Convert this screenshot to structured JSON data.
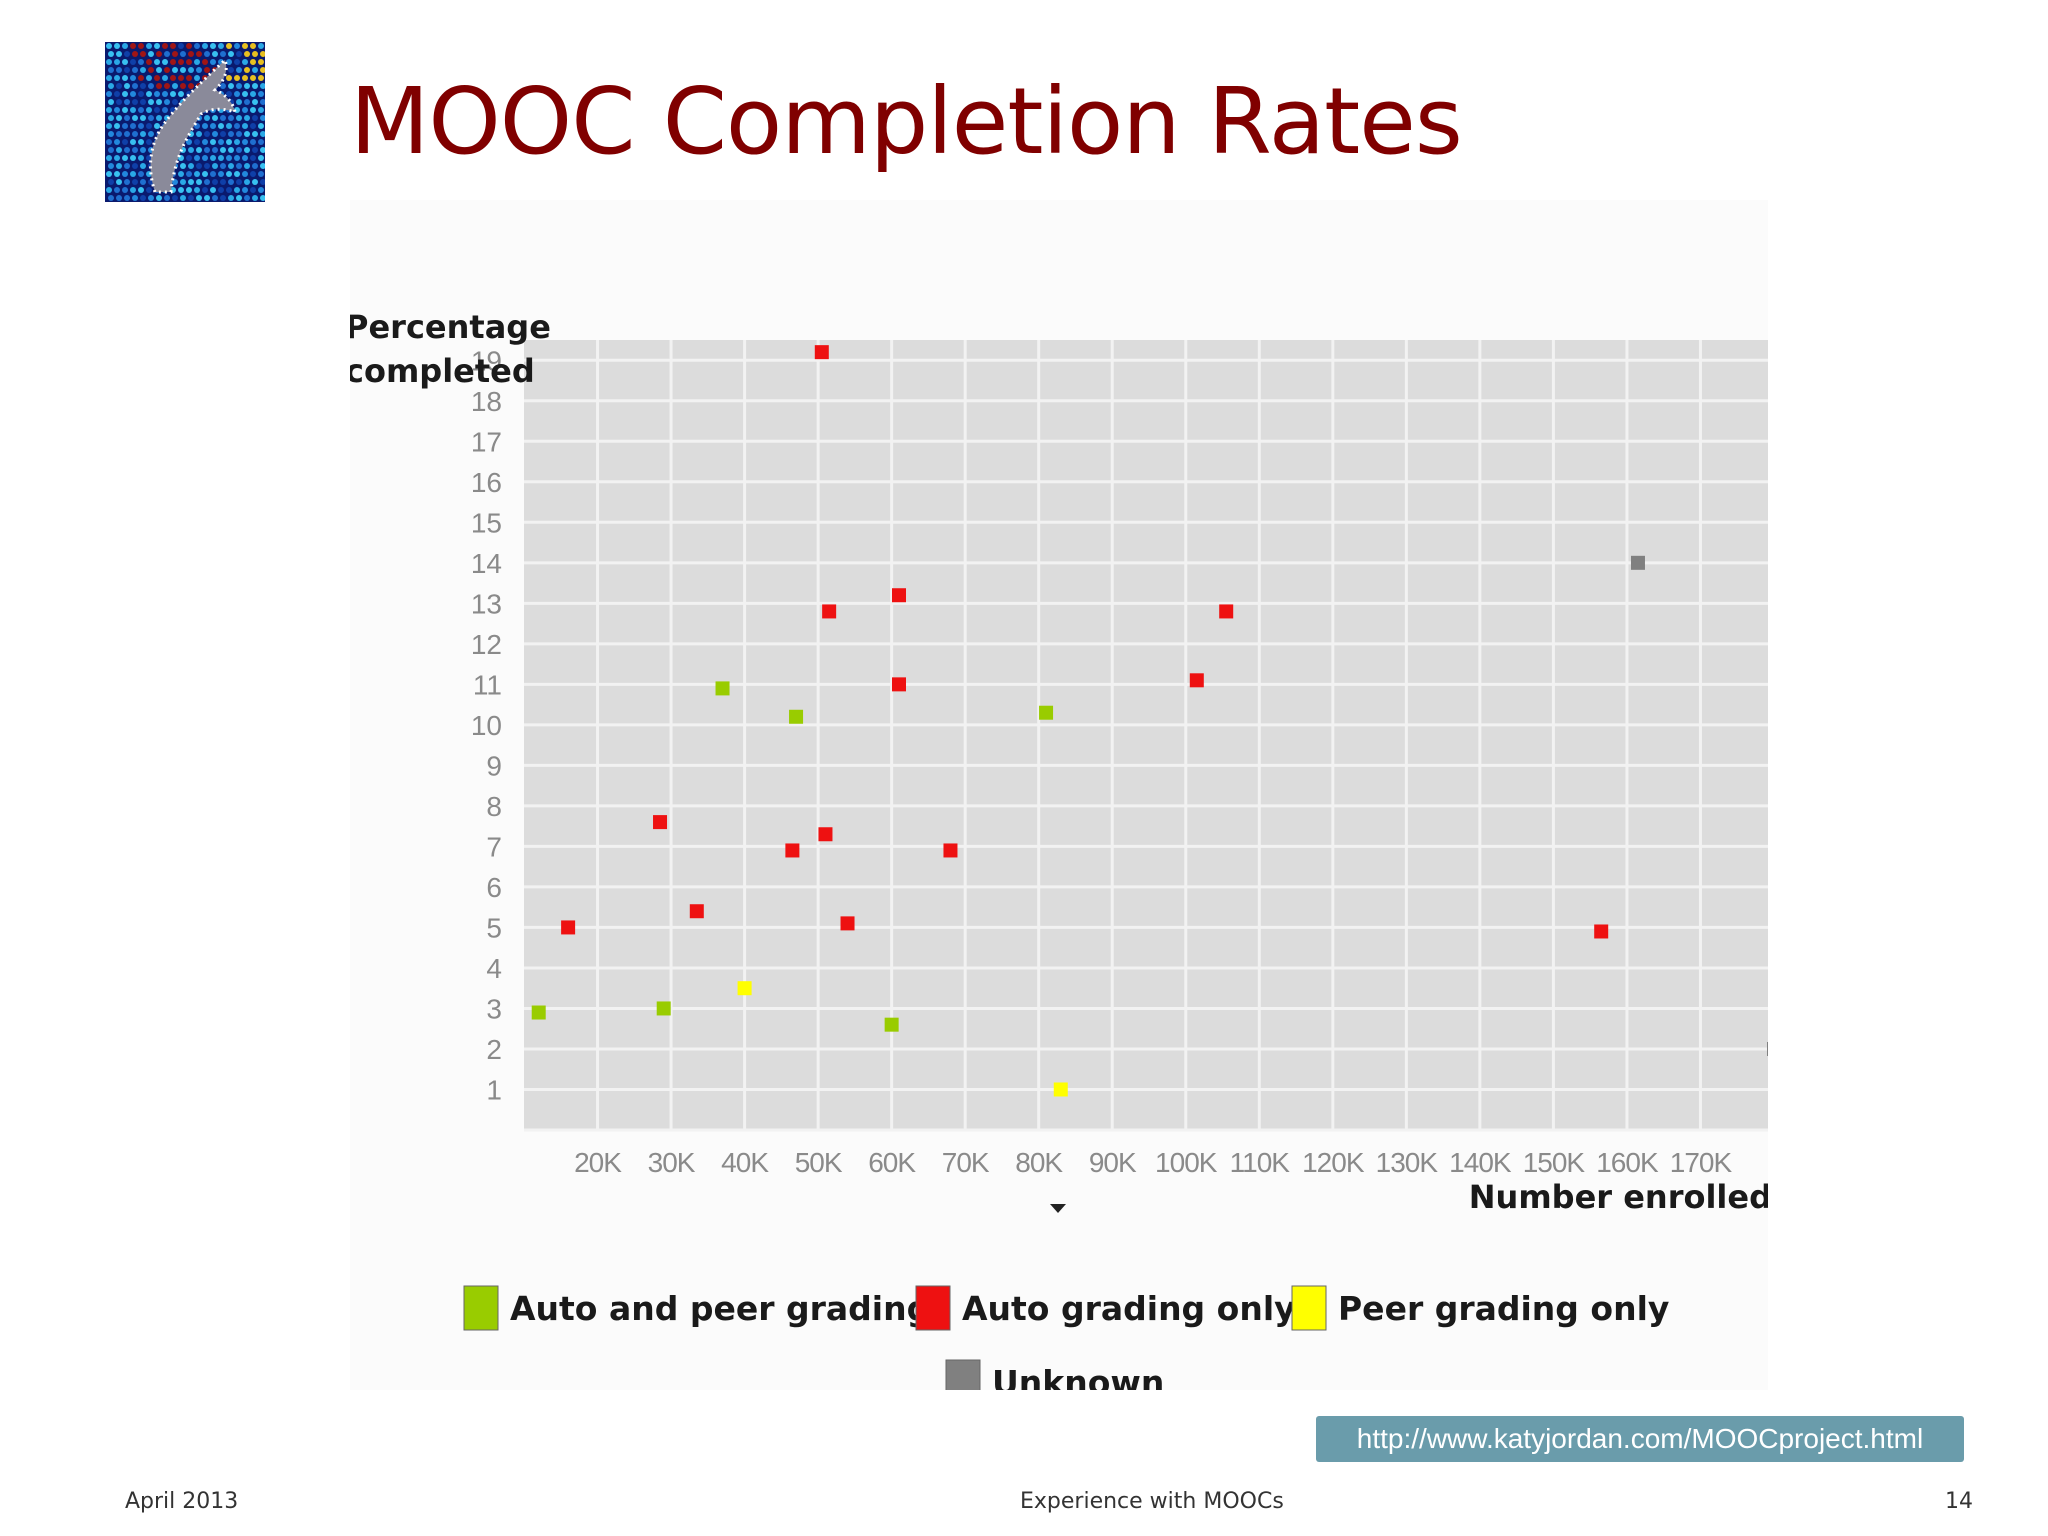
{
  "slide": {
    "title": "MOOC Completion Rates",
    "footer_left": "April 2013",
    "footer_center": "Experience with MOOCs",
    "page_number": "14",
    "source_url": "http://www.katyjordan.com/MOOCproject.html"
  },
  "colors": {
    "title": "#800000",
    "plot_background": "#dcdcdc",
    "grid": "#f2f2f2",
    "auto_and_peer": "#99cc00",
    "auto_only": "#ee1111",
    "peer_only": "#ffff00",
    "unknown": "#808080"
  },
  "chart_data": {
    "type": "scatter",
    "title": "",
    "xlabel": "Number enrolled",
    "ylabel": "Percentage completed",
    "xlim": [
      10000,
      180000
    ],
    "ylim": [
      0,
      20
    ],
    "x_tick_values": [
      20000,
      30000,
      40000,
      50000,
      60000,
      70000,
      80000,
      90000,
      100000,
      110000,
      120000,
      130000,
      140000,
      150000,
      160000,
      170000
    ],
    "x_tick_labels": [
      "20K",
      "30K",
      "40K",
      "50K",
      "60K",
      "70K",
      "80K",
      "90K",
      "100K",
      "110K",
      "120K",
      "130K",
      "140K",
      "150K",
      "160K",
      "170K"
    ],
    "y_ticks": [
      1,
      2,
      3,
      4,
      5,
      6,
      7,
      8,
      9,
      10,
      11,
      12,
      13,
      14,
      15,
      16,
      17,
      18,
      19
    ],
    "grid": true,
    "legend_position": "bottom",
    "series": [
      {
        "name": "Auto and peer grading",
        "color": "#99cc00",
        "points": [
          [
            12000,
            2.9
          ],
          [
            29000,
            3.0
          ],
          [
            37000,
            10.9
          ],
          [
            47000,
            10.2
          ],
          [
            60000,
            2.6
          ],
          [
            81000,
            10.3
          ]
        ]
      },
      {
        "name": "Auto grading only",
        "color": "#ee1111",
        "points": [
          [
            16000,
            5.0
          ],
          [
            28500,
            7.6
          ],
          [
            33500,
            5.4
          ],
          [
            46500,
            6.9
          ],
          [
            51000,
            7.3
          ],
          [
            54000,
            5.1
          ],
          [
            50500,
            19.2
          ],
          [
            51500,
            12.8
          ],
          [
            61000,
            13.2
          ],
          [
            61000,
            11.0
          ],
          [
            68000,
            6.9
          ],
          [
            101500,
            11.1
          ],
          [
            105500,
            12.8
          ],
          [
            156500,
            4.9
          ]
        ]
      },
      {
        "name": "Peer grading only",
        "color": "#ffff00",
        "points": [
          [
            40000,
            3.5
          ],
          [
            83000,
            1.0
          ]
        ]
      },
      {
        "name": "Unknown",
        "color": "#808080",
        "points": [
          [
            161500,
            14.0
          ],
          [
            180000,
            2.0
          ]
        ]
      }
    ]
  }
}
